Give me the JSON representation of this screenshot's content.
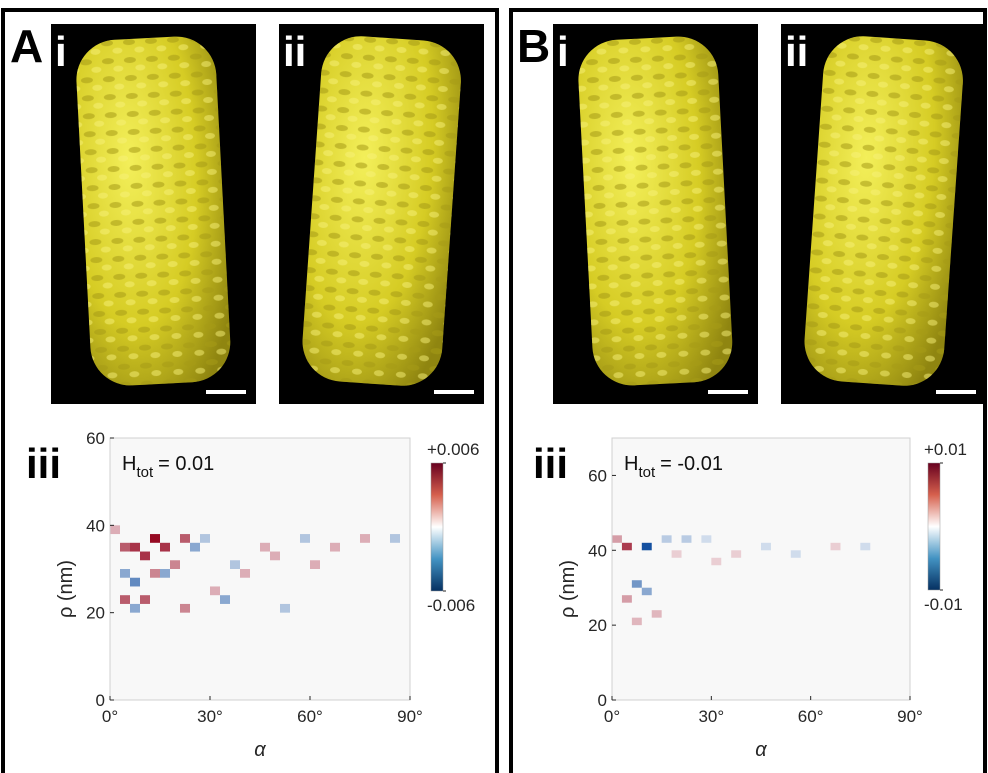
{
  "panels": [
    {
      "letter": "A",
      "images": [
        {
          "label": "i"
        },
        {
          "label": "ii"
        }
      ],
      "chart": {
        "type": "heatmap",
        "label": "iii",
        "annotation": {
          "symbol": "H",
          "subscript": "tot",
          "text": "= 0.01"
        },
        "xlabel": "α",
        "ylabel": "ρ (nm)",
        "xlim": [
          0,
          90
        ],
        "xticks": [
          {
            "value": 0,
            "label": "0°"
          },
          {
            "value": 30,
            "label": "30°"
          },
          {
            "value": 60,
            "label": "60°"
          },
          {
            "value": 90,
            "label": "90°"
          }
        ],
        "ylim": [
          0,
          60
        ],
        "yticks": [
          0,
          20,
          40,
          60
        ],
        "colorbar": {
          "lim": [
            -0.006,
            0.006
          ],
          "ticks": [
            {
              "value": 0.006,
              "label": "+0.006"
            },
            {
              "value": -0.006,
              "label": "-0.006"
            }
          ]
        },
        "cells": [
          {
            "alpha": 12,
            "rho": 36,
            "value": 0.006
          },
          {
            "alpha": 3,
            "rho": 34,
            "value": 0.004
          },
          {
            "alpha": 6,
            "rho": 34,
            "value": 0.005
          },
          {
            "alpha": 15,
            "rho": 34,
            "value": 0.005
          },
          {
            "alpha": 21,
            "rho": 36,
            "value": 0.004
          },
          {
            "alpha": 9,
            "rho": 32,
            "value": 0.005
          },
          {
            "alpha": 3,
            "rho": 22,
            "value": 0.004
          },
          {
            "alpha": 9,
            "rho": 22,
            "value": 0.004
          },
          {
            "alpha": 6,
            "rho": 26,
            "value": -0.004
          },
          {
            "alpha": 3,
            "rho": 28,
            "value": -0.003
          },
          {
            "alpha": 15,
            "rho": 28,
            "value": -0.003
          },
          {
            "alpha": 18,
            "rho": 30,
            "value": 0.003
          },
          {
            "alpha": 24,
            "rho": 34,
            "value": -0.003
          },
          {
            "alpha": 27,
            "rho": 36,
            "value": -0.002
          },
          {
            "alpha": 21,
            "rho": 20,
            "value": 0.003
          },
          {
            "alpha": 30,
            "rho": 24,
            "value": 0.002
          },
          {
            "alpha": 33,
            "rho": 22,
            "value": -0.003
          },
          {
            "alpha": 45,
            "rho": 34,
            "value": 0.002
          },
          {
            "alpha": 48,
            "rho": 32,
            "value": 0.002
          },
          {
            "alpha": 51,
            "rho": 20,
            "value": -0.002
          },
          {
            "alpha": 60,
            "rho": 30,
            "value": 0.002
          },
          {
            "alpha": 57,
            "rho": 36,
            "value": -0.002
          },
          {
            "alpha": 66,
            "rho": 34,
            "value": 0.002
          },
          {
            "alpha": 75,
            "rho": 36,
            "value": 0.002
          },
          {
            "alpha": 84,
            "rho": 36,
            "value": -0.002
          },
          {
            "alpha": 6,
            "rho": 20,
            "value": -0.003
          },
          {
            "alpha": 12,
            "rho": 28,
            "value": 0.003
          },
          {
            "alpha": 36,
            "rho": 30,
            "value": -0.002
          },
          {
            "alpha": 0,
            "rho": 38,
            "value": 0.002
          },
          {
            "alpha": 39,
            "rho": 28,
            "value": 0.002
          }
        ]
      }
    },
    {
      "letter": "B",
      "images": [
        {
          "label": "i"
        },
        {
          "label": "ii"
        }
      ],
      "chart": {
        "type": "heatmap",
        "label": "iii",
        "annotation": {
          "symbol": "H",
          "subscript": "tot",
          "text": "= -0.01"
        },
        "xlabel": "α",
        "ylabel": "ρ (nm)",
        "xlim": [
          0,
          90
        ],
        "xticks": [
          {
            "value": 0,
            "label": "0°"
          },
          {
            "value": 30,
            "label": "30°"
          },
          {
            "value": 60,
            "label": "60°"
          },
          {
            "value": 90,
            "label": "90°"
          }
        ],
        "ylim": [
          0,
          70
        ],
        "yticks": [
          0,
          20,
          40,
          60
        ],
        "colorbar": {
          "lim": [
            -0.01,
            0.01
          ],
          "ticks": [
            {
              "value": 0.01,
              "label": "+0.01"
            },
            {
              "value": -0.01,
              "label": "-0.01"
            }
          ]
        },
        "cells": [
          {
            "alpha": 3,
            "rho": 40,
            "value": 0.008
          },
          {
            "alpha": 9,
            "rho": 40,
            "value": -0.01
          },
          {
            "alpha": 6,
            "rho": 30,
            "value": -0.006
          },
          {
            "alpha": 9,
            "rho": 28,
            "value": -0.005
          },
          {
            "alpha": 3,
            "rho": 26,
            "value": 0.004
          },
          {
            "alpha": 12,
            "rho": 22,
            "value": 0.003
          },
          {
            "alpha": 6,
            "rho": 20,
            "value": 0.003
          },
          {
            "alpha": 15,
            "rho": 42,
            "value": -0.003
          },
          {
            "alpha": 21,
            "rho": 42,
            "value": -0.003
          },
          {
            "alpha": 27,
            "rho": 42,
            "value": -0.002
          },
          {
            "alpha": 36,
            "rho": 38,
            "value": 0.002
          },
          {
            "alpha": 45,
            "rho": 40,
            "value": -0.002
          },
          {
            "alpha": 54,
            "rho": 38,
            "value": -0.002
          },
          {
            "alpha": 66,
            "rho": 40,
            "value": 0.002
          },
          {
            "alpha": 0,
            "rho": 42,
            "value": 0.004
          },
          {
            "alpha": 18,
            "rho": 38,
            "value": 0.002
          },
          {
            "alpha": 30,
            "rho": 36,
            "value": 0.002
          },
          {
            "alpha": 75,
            "rho": 40,
            "value": -0.002
          }
        ]
      }
    }
  ]
}
